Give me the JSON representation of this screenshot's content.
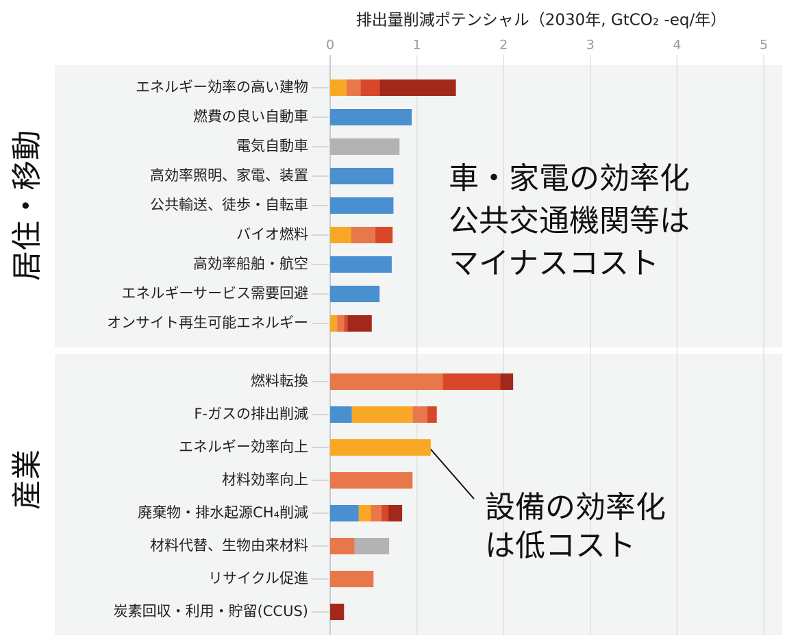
{
  "chart_data": {
    "type": "bar",
    "orientation": "horizontal",
    "stacked": true,
    "title": "排出量削減ポテンシャル（2030年, GtCO₂ -eq/年）",
    "group_labels": [
      "居住・移動",
      "産業"
    ],
    "categories": [
      "エネルギー効率の高い建物",
      "燃費の良い自動車",
      "電気自動車",
      "高効率照明、家電、装置",
      "公共輸送、徒歩・自転車",
      "バイオ燃料",
      "高効率船舶・航空",
      "エネルギーサービス需要回避",
      "オンサイト再生可能エネルギー",
      "燃料転換",
      "F-ガスの排出削減",
      "エネルギー効率向上",
      "材料効率向上",
      "廃棄物・排水起源CH₄削減",
      "材料代替、生物由来材料",
      "リサイクル促進",
      "炭素回収・利用・貯留(CCUS)"
    ],
    "series": [
      {
        "color": "#4a8fd0",
        "values": [
          null,
          0.94,
          null,
          0.73,
          0.73,
          null,
          0.71,
          0.57,
          null,
          null,
          0.25,
          null,
          null,
          0.33,
          null,
          null,
          null
        ]
      },
      {
        "color": "#f9a825",
        "values": [
          0.19,
          null,
          null,
          null,
          null,
          0.24,
          null,
          null,
          0.08,
          null,
          0.7,
          1.16,
          null,
          0.14,
          null,
          null,
          null
        ]
      },
      {
        "color": "#e8784a",
        "values": [
          0.16,
          null,
          null,
          null,
          null,
          0.28,
          null,
          null,
          0.08,
          1.3,
          0.17,
          null,
          0.95,
          0.12,
          0.28,
          0.5,
          null
        ]
      },
      {
        "color": "#d9472a",
        "values": [
          0.22,
          null,
          null,
          null,
          null,
          0.2,
          null,
          null,
          0.04,
          0.66,
          0.11,
          null,
          null,
          0.08,
          null,
          null,
          null
        ]
      },
      {
        "color": "#a3281c",
        "values": [
          0.88,
          null,
          null,
          null,
          null,
          null,
          null,
          null,
          0.28,
          0.15,
          null,
          null,
          null,
          0.16,
          null,
          null,
          0.16
        ]
      },
      {
        "color": "#b3b3b3",
        "values": [
          null,
          null,
          0.8,
          null,
          null,
          null,
          null,
          null,
          null,
          null,
          null,
          null,
          null,
          null,
          0.4,
          null,
          null
        ]
      }
    ],
    "xlim": [
      0,
      5
    ],
    "xticks": [
      0,
      1,
      2,
      3,
      4,
      5
    ],
    "grid": true,
    "annotations": [
      {
        "lines": [
          "車・家電の効率化",
          "公共交通機関等は",
          "マイナスコスト"
        ]
      },
      {
        "lines": [
          "設備の効率化",
          "は低コスト"
        ]
      }
    ]
  }
}
